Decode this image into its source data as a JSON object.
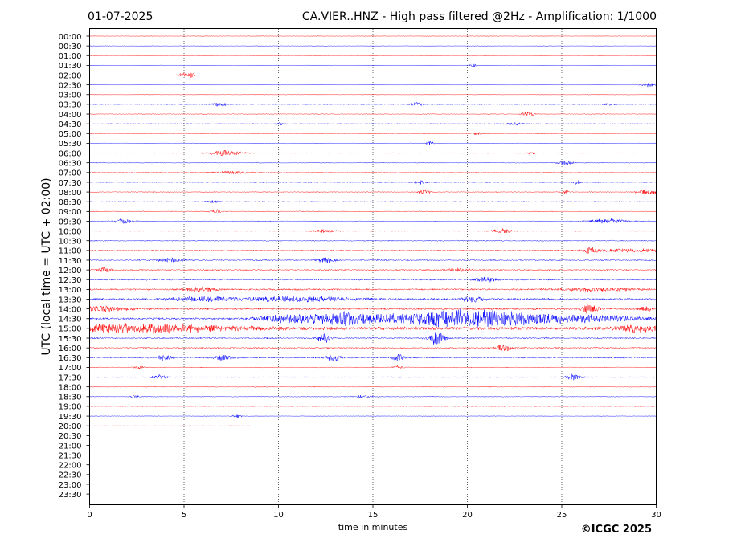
{
  "header": {
    "date": "01-07-2025",
    "title": "CA.VIER..HNZ - High pass filtered @2Hz - Amplification: 1/1000"
  },
  "footer": {
    "copyright": "©ICGC 2025"
  },
  "colors": {
    "trace_a": "#ff0000",
    "trace_b": "#0000ff",
    "axis": "#000000",
    "grid": "#000000",
    "background": "#ffffff"
  },
  "chart_data": {
    "type": "line",
    "title": "CA.VIER..HNZ - High pass filtered @2Hz - Amplification: 1/1000",
    "xlabel": "time in minutes",
    "ylabel": "UTC (local time = UTC + 02:00)",
    "xlim": [
      0,
      30
    ],
    "x_ticks": [
      0,
      5,
      10,
      15,
      20,
      25,
      30
    ],
    "grid": "vertical dotted lines at 5, 10, 15, 20, 25",
    "row_labels": [
      "00:00",
      "00:30",
      "01:00",
      "01:30",
      "02:00",
      "02:30",
      "03:00",
      "03:30",
      "04:00",
      "04:30",
      "05:00",
      "05:30",
      "06:00",
      "06:30",
      "07:00",
      "07:30",
      "08:00",
      "08:30",
      "09:00",
      "09:30",
      "10:00",
      "10:30",
      "11:00",
      "11:30",
      "12:00",
      "12:30",
      "13:00",
      "13:30",
      "14:00",
      "14:30",
      "15:00",
      "15:30",
      "16:00",
      "16:30",
      "17:00",
      "17:30",
      "18:00",
      "18:30",
      "19:00",
      "19:30",
      "20:00",
      "20:30",
      "21:00",
      "21:30",
      "22:00",
      "22:30",
      "23:00",
      "23:30"
    ],
    "trace_colors_alternating": [
      "red",
      "blue"
    ],
    "recorded_until": {
      "row": "20:00",
      "minute": 8.5
    },
    "rows": [
      {
        "label": "00:00",
        "noise": 0.5,
        "events": []
      },
      {
        "label": "00:30",
        "noise": 0.5,
        "events": []
      },
      {
        "label": "01:00",
        "noise": 0.5,
        "events": []
      },
      {
        "label": "01:30",
        "noise": 0.6,
        "events": [
          {
            "x": 20.3,
            "amp": 2,
            "dur": 0.2
          }
        ]
      },
      {
        "label": "02:00",
        "noise": 0.6,
        "events": [
          {
            "x": 5.0,
            "amp": 3,
            "dur": 0.3
          },
          {
            "x": 5.4,
            "amp": 3,
            "dur": 0.2
          }
        ]
      },
      {
        "label": "02:30",
        "noise": 0.6,
        "events": [
          {
            "x": 29.6,
            "amp": 3,
            "dur": 0.3
          }
        ]
      },
      {
        "label": "03:00",
        "noise": 0.6,
        "events": []
      },
      {
        "label": "03:30",
        "noise": 0.8,
        "events": [
          {
            "x": 6.9,
            "amp": 3,
            "dur": 0.4
          },
          {
            "x": 17.3,
            "amp": 3,
            "dur": 0.3
          },
          {
            "x": 27.5,
            "amp": 2,
            "dur": 0.3
          }
        ]
      },
      {
        "label": "04:00",
        "noise": 0.8,
        "events": [
          {
            "x": 23.2,
            "amp": 4,
            "dur": 0.3
          }
        ]
      },
      {
        "label": "04:30",
        "noise": 0.8,
        "events": [
          {
            "x": 10.1,
            "amp": 2,
            "dur": 0.2
          },
          {
            "x": 22.5,
            "amp": 2,
            "dur": 0.5
          }
        ]
      },
      {
        "label": "05:00",
        "noise": 0.8,
        "events": [
          {
            "x": 20.5,
            "amp": 2,
            "dur": 0.3
          }
        ]
      },
      {
        "label": "05:30",
        "noise": 0.8,
        "events": [
          {
            "x": 18.0,
            "amp": 3,
            "dur": 0.2
          }
        ]
      },
      {
        "label": "06:00",
        "noise": 0.9,
        "events": [
          {
            "x": 7.2,
            "amp": 4,
            "dur": 0.8
          },
          {
            "x": 23.4,
            "amp": 2,
            "dur": 0.2
          }
        ]
      },
      {
        "label": "06:30",
        "noise": 0.9,
        "events": [
          {
            "x": 25.2,
            "amp": 3,
            "dur": 0.4
          }
        ]
      },
      {
        "label": "07:00",
        "noise": 0.9,
        "events": [
          {
            "x": 7.5,
            "amp": 2,
            "dur": 1.0
          }
        ]
      },
      {
        "label": "07:30",
        "noise": 0.9,
        "events": [
          {
            "x": 17.5,
            "amp": 3,
            "dur": 0.3
          },
          {
            "x": 25.8,
            "amp": 3,
            "dur": 0.2
          }
        ]
      },
      {
        "label": "08:00",
        "noise": 1.0,
        "events": [
          {
            "x": 17.7,
            "amp": 3,
            "dur": 0.3
          },
          {
            "x": 25.2,
            "amp": 3,
            "dur": 0.2
          },
          {
            "x": 29.5,
            "amp": 3,
            "dur": 0.6
          }
        ]
      },
      {
        "label": "08:30",
        "noise": 1.0,
        "events": [
          {
            "x": 6.5,
            "amp": 2,
            "dur": 0.3
          }
        ]
      },
      {
        "label": "09:00",
        "noise": 1.0,
        "events": [
          {
            "x": 6.7,
            "amp": 3,
            "dur": 0.3
          }
        ]
      },
      {
        "label": "09:30",
        "noise": 1.1,
        "events": [
          {
            "x": 1.8,
            "amp": 3,
            "dur": 0.5
          },
          {
            "x": 27.5,
            "amp": 3,
            "dur": 1.0
          }
        ]
      },
      {
        "label": "10:00",
        "noise": 1.2,
        "events": [
          {
            "x": 12.4,
            "amp": 2,
            "dur": 0.6
          },
          {
            "x": 21.8,
            "amp": 3,
            "dur": 0.5
          }
        ]
      },
      {
        "label": "10:30",
        "noise": 1.3,
        "events": []
      },
      {
        "label": "11:00",
        "noise": 1.5,
        "events": [
          {
            "x": 26.5,
            "amp": 4,
            "dur": 0.3
          },
          {
            "x": 28.5,
            "amp": 2,
            "dur": 2.5
          }
        ]
      },
      {
        "label": "11:30",
        "noise": 1.6,
        "events": [
          {
            "x": 4.3,
            "amp": 3,
            "dur": 0.6
          },
          {
            "x": 12.5,
            "amp": 3,
            "dur": 0.5
          }
        ]
      },
      {
        "label": "12:00",
        "noise": 1.6,
        "events": [
          {
            "x": 0.8,
            "amp": 4,
            "dur": 0.3
          },
          {
            "x": 19.5,
            "amp": 2,
            "dur": 0.6
          }
        ]
      },
      {
        "label": "12:30",
        "noise": 1.8,
        "events": [
          {
            "x": 21.0,
            "amp": 4,
            "dur": 0.5
          }
        ]
      },
      {
        "label": "13:00",
        "noise": 2.0,
        "events": [
          {
            "x": 5.8,
            "amp": 3,
            "dur": 0.8
          },
          {
            "x": 27.0,
            "amp": 2,
            "dur": 2.0
          }
        ]
      },
      {
        "label": "13:30",
        "noise": 2.6,
        "events": [
          {
            "x": 6.0,
            "amp": 3,
            "dur": 1.5
          },
          {
            "x": 11.0,
            "amp": 3,
            "dur": 3.0
          },
          {
            "x": 20.3,
            "amp": 4,
            "dur": 0.6
          }
        ]
      },
      {
        "label": "14:00",
        "noise": 2.2,
        "events": [
          {
            "x": 0.5,
            "amp": 4,
            "dur": 1.5
          },
          {
            "x": 26.5,
            "amp": 6,
            "dur": 0.4
          },
          {
            "x": 29.4,
            "amp": 4,
            "dur": 0.3
          }
        ]
      },
      {
        "label": "14:30",
        "noise": 2.5,
        "events": [
          {
            "x": 10.5,
            "amp": 5,
            "dur": 1.5
          },
          {
            "x": 13.5,
            "amp": 8,
            "dur": 1.8
          },
          {
            "x": 19.3,
            "amp": 10,
            "dur": 3.5
          },
          {
            "x": 24.5,
            "amp": 5,
            "dur": 4.5
          }
        ]
      },
      {
        "label": "15:00",
        "noise": 4.0,
        "events": [
          {
            "x": 2.5,
            "amp": 5,
            "dur": 5.0
          },
          {
            "x": 29.0,
            "amp": 4,
            "dur": 1.0
          }
        ]
      },
      {
        "label": "15:30",
        "noise": 1.8,
        "events": [
          {
            "x": 12.4,
            "amp": 7,
            "dur": 0.3
          },
          {
            "x": 18.4,
            "amp": 10,
            "dur": 0.4
          }
        ]
      },
      {
        "label": "16:00",
        "noise": 1.6,
        "events": [
          {
            "x": 21.9,
            "amp": 5,
            "dur": 0.4
          }
        ]
      },
      {
        "label": "16:30",
        "noise": 1.7,
        "events": [
          {
            "x": 4.0,
            "amp": 4,
            "dur": 0.4
          },
          {
            "x": 7.1,
            "amp": 4,
            "dur": 0.5
          },
          {
            "x": 12.9,
            "amp": 5,
            "dur": 0.4
          },
          {
            "x": 16.3,
            "amp": 5,
            "dur": 0.3
          }
        ]
      },
      {
        "label": "17:00",
        "noise": 1.0,
        "events": [
          {
            "x": 2.7,
            "amp": 2,
            "dur": 0.3
          },
          {
            "x": 16.3,
            "amp": 2,
            "dur": 0.3
          }
        ]
      },
      {
        "label": "17:30",
        "noise": 1.2,
        "events": [
          {
            "x": 3.7,
            "amp": 3,
            "dur": 0.4
          },
          {
            "x": 25.6,
            "amp": 4,
            "dur": 0.4
          }
        ]
      },
      {
        "label": "18:00",
        "noise": 1.0,
        "events": []
      },
      {
        "label": "18:30",
        "noise": 0.9,
        "events": [
          {
            "x": 2.4,
            "amp": 2,
            "dur": 0.2
          },
          {
            "x": 14.5,
            "amp": 2,
            "dur": 0.5
          }
        ]
      },
      {
        "label": "19:00",
        "noise": 0.7,
        "events": []
      },
      {
        "label": "19:30",
        "noise": 0.5,
        "events": [
          {
            "x": 7.8,
            "amp": 2,
            "dur": 0.3
          }
        ]
      },
      {
        "label": "20:00",
        "noise": 0.3,
        "events": []
      }
    ]
  }
}
